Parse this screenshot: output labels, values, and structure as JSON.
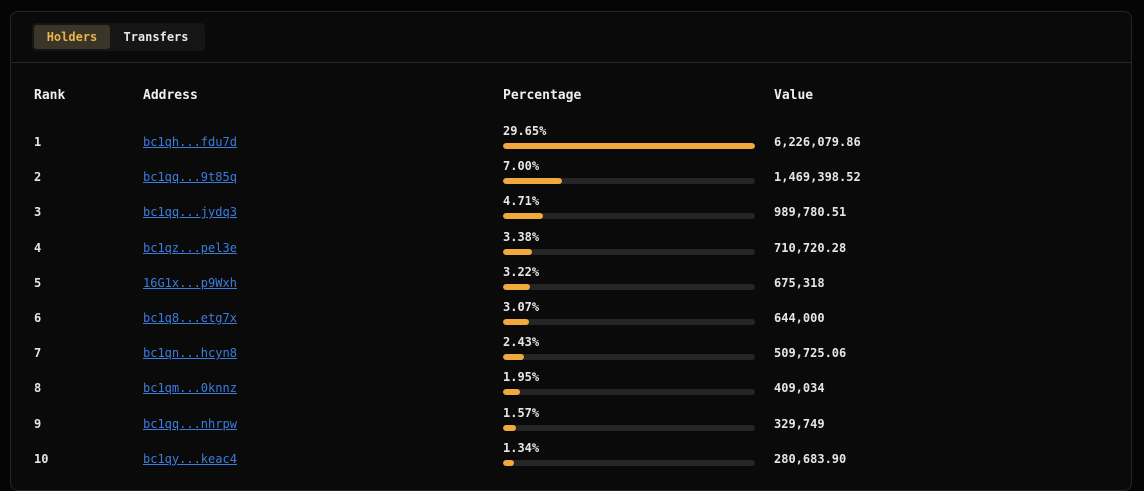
{
  "tabs": [
    {
      "label": "Holders",
      "active": true
    },
    {
      "label": "Transfers",
      "active": false
    }
  ],
  "table": {
    "headers": {
      "rank": "Rank",
      "address": "Address",
      "percentage": "Percentage",
      "value": "Value"
    },
    "rows": [
      {
        "rank": "1",
        "address": "bc1qh...fdu7d",
        "percentage": "29.65%",
        "fraction": 1.0,
        "value": "6,226,079.86"
      },
      {
        "rank": "2",
        "address": "bc1qq...9t85q",
        "percentage": "7.00%",
        "fraction": 0.236,
        "value": "1,469,398.52"
      },
      {
        "rank": "3",
        "address": "bc1qq...jydq3",
        "percentage": "4.71%",
        "fraction": 0.159,
        "value": "989,780.51"
      },
      {
        "rank": "4",
        "address": "bc1qz...pel3e",
        "percentage": "3.38%",
        "fraction": 0.114,
        "value": "710,720.28"
      },
      {
        "rank": "5",
        "address": "16G1x...p9Wxh",
        "percentage": "3.22%",
        "fraction": 0.109,
        "value": "675,318"
      },
      {
        "rank": "6",
        "address": "bc1q8...etg7x",
        "percentage": "3.07%",
        "fraction": 0.104,
        "value": "644,000"
      },
      {
        "rank": "7",
        "address": "bc1qn...hcyn8",
        "percentage": "2.43%",
        "fraction": 0.082,
        "value": "509,725.06"
      },
      {
        "rank": "8",
        "address": "bc1qm...0knnz",
        "percentage": "1.95%",
        "fraction": 0.066,
        "value": "409,034"
      },
      {
        "rank": "9",
        "address": "bc1qq...nhrpw",
        "percentage": "1.57%",
        "fraction": 0.053,
        "value": "329,749"
      },
      {
        "rank": "10",
        "address": "bc1qy...keac4",
        "percentage": "1.34%",
        "fraction": 0.045,
        "value": "280,683.90"
      }
    ]
  },
  "colors": {
    "accent": "#f2a93b",
    "link": "#3b7ddd",
    "active_tab_text": "#e7b54a"
  }
}
